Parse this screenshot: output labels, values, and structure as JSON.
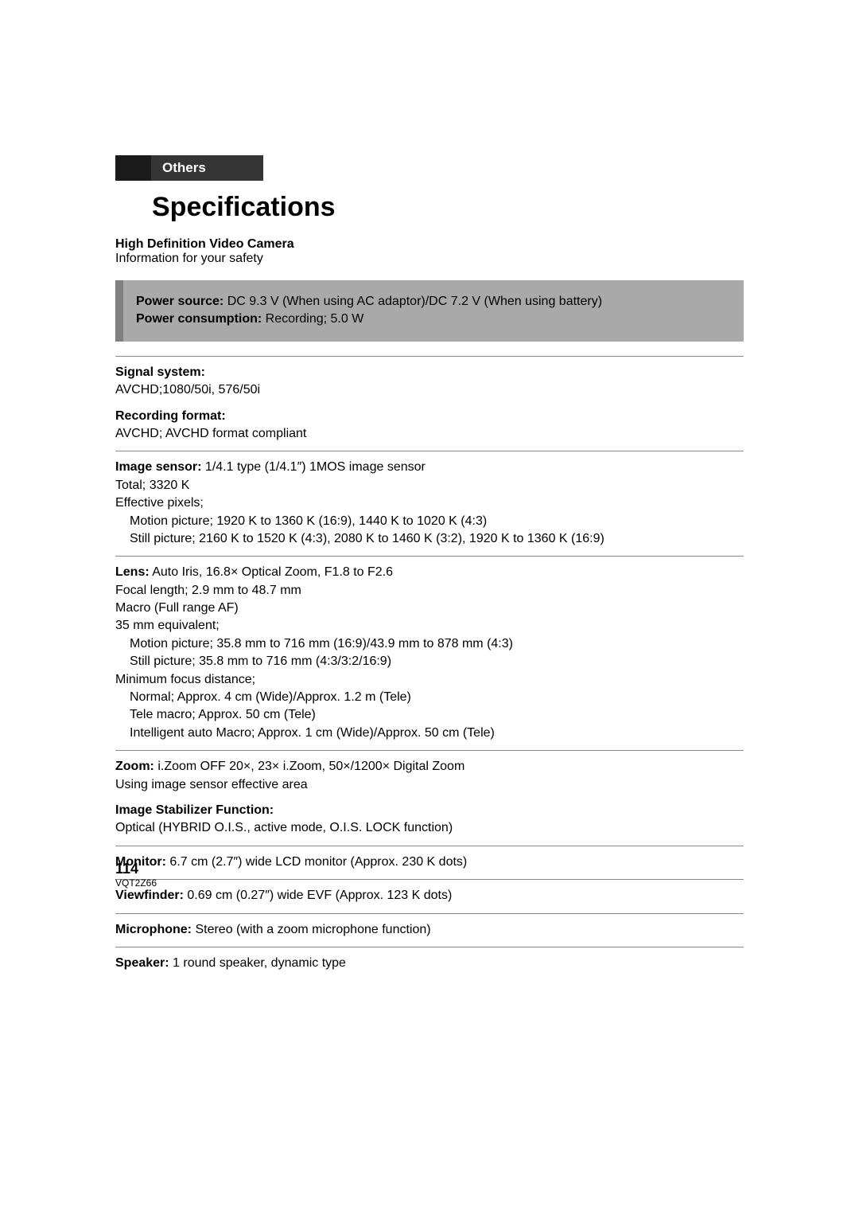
{
  "header": {
    "tab_label": "Others",
    "title": "Specifications",
    "subtitle_bold": "High Definition Video Camera",
    "subtitle_reg": "Information for your safety"
  },
  "greybox": {
    "line1_label": "Power source:",
    "line1_value": " DC 9.3 V (When using AC adaptor)/DC 7.2 V (When using battery)",
    "line2_label": "Power consumption:",
    "line2_value": " Recording; 5.0 W"
  },
  "specs": {
    "signal": {
      "label": "Signal system:",
      "value": "AVCHD;1080/50i, 576/50i"
    },
    "recording": {
      "label": "Recording format:",
      "value": "AVCHD; AVCHD format compliant"
    },
    "sensor": {
      "label": "Image sensor:",
      "value1": " 1/4.1 type (1/4.1″) 1MOS image sensor",
      "line2": "Total; 3320 K",
      "line3": "Effective pixels;",
      "line4": "Motion picture; 1920 K to 1360 K (16:9), 1440 K to 1020 K (4:3)",
      "line5": "Still picture; 2160 K to 1520 K (4:3), 2080 K to 1460 K (3:2), 1920 K to 1360 K (16:9)"
    },
    "lens": {
      "label": "Lens:",
      "value1": " Auto Iris, 16.8× Optical Zoom, F1.8 to F2.6",
      "line2": "Focal length; 2.9 mm to 48.7 mm",
      "line3": "Macro (Full range AF)",
      "line4": "35 mm equivalent;",
      "line5": "Motion picture; 35.8 mm to 716 mm (16:9)/43.9 mm to 878 mm (4:3)",
      "line6": "Still picture; 35.8 mm to 716 mm (4:3/3:2/16:9)",
      "line7": "Minimum focus distance;",
      "line8": "Normal; Approx. 4 cm (Wide)/Approx. 1.2 m (Tele)",
      "line9": "Tele macro; Approx. 50 cm (Tele)",
      "line10": "Intelligent auto Macro; Approx. 1 cm (Wide)/Approx. 50 cm (Tele)"
    },
    "zoom": {
      "label": "Zoom:",
      "value1": " i.Zoom OFF 20×, 23× i.Zoom, 50×/1200× Digital Zoom",
      "line2": "Using image sensor effective area"
    },
    "stabilizer": {
      "label": "Image Stabilizer Function:",
      "value": "Optical (HYBRID O.I.S., active mode, O.I.S. LOCK function)"
    },
    "monitor": {
      "label": "Monitor:",
      "value": " 6.7 cm (2.7″) wide LCD monitor (Approx. 230 K dots)"
    },
    "viewfinder": {
      "label": "Viewfinder:",
      "value": " 0.69 cm (0.27″) wide EVF (Approx. 123 K dots)"
    },
    "microphone": {
      "label": "Microphone:",
      "value": " Stereo (with a zoom microphone function)"
    },
    "speaker": {
      "label": "Speaker:",
      "value": " 1 round speaker, dynamic type"
    }
  },
  "footer": {
    "page_num": "114",
    "doc_code": "VQT2Z66"
  }
}
